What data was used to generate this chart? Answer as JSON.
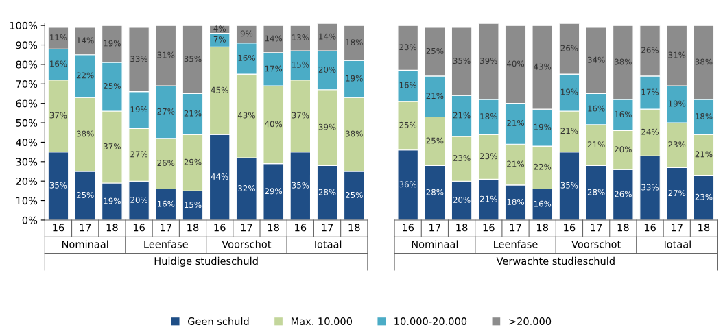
{
  "chart_data": {
    "type": "bar",
    "stacked": true,
    "categories": [
      "16",
      "17",
      "18",
      "16",
      "17",
      "18",
      "16",
      "17",
      "18",
      "16",
      "17",
      "18",
      null,
      "16",
      "17",
      "18",
      "16",
      "17",
      "18",
      "16",
      "17",
      "18",
      "16",
      "17",
      "18"
    ],
    "series": [
      {
        "name": "Geen schuld",
        "color": "#1f4e86",
        "values": [
          35,
          25,
          19,
          20,
          16,
          15,
          44,
          32,
          29,
          35,
          28,
          25,
          null,
          36,
          28,
          20,
          21,
          18,
          16,
          35,
          28,
          26,
          33,
          27,
          23
        ],
        "value_labels": [
          "35%",
          "25%",
          "19%",
          "20%",
          "16%",
          "15%",
          "44%",
          "32%",
          "29%",
          "35%",
          "28%",
          "25%",
          null,
          "36%",
          "28%",
          "20%",
          "21%",
          "18%",
          "16%",
          "35%",
          "28%",
          "26%",
          "33%",
          "27%",
          "23%"
        ]
      },
      {
        "name": "Max. 10.000",
        "color": "#c3d69b",
        "values": [
          37,
          38,
          37,
          27,
          26,
          29,
          45,
          43,
          40,
          37,
          39,
          38,
          null,
          25,
          25,
          23,
          23,
          21,
          22,
          21,
          21,
          20,
          24,
          23,
          21
        ],
        "value_labels": [
          "37%",
          "38%",
          "37%",
          "27%",
          "26%",
          "29%",
          "45%",
          "43%",
          "40%",
          "37%",
          "39%",
          "38%",
          null,
          "25%",
          "25%",
          "23%",
          "23%",
          "21%",
          "22%",
          "21%",
          "21%",
          "20%",
          "24%",
          "23%",
          "21%"
        ]
      },
      {
        "name": "10.000-20.000",
        "color": "#4bacc6",
        "values": [
          16,
          22,
          25,
          19,
          27,
          21,
          7,
          16,
          17,
          15,
          20,
          19,
          null,
          16,
          21,
          21,
          18,
          21,
          19,
          19,
          16,
          16,
          17,
          19,
          18
        ],
        "value_labels": [
          "16%",
          "22%",
          "25%",
          "19%",
          "27%",
          "21%",
          "7%",
          "16%",
          "17%",
          "15%",
          "20%",
          "19%",
          null,
          "16%",
          "21%",
          "21%",
          "18%",
          "21%",
          "19%",
          "19%",
          "16%",
          "16%",
          "17%",
          "19%",
          "18%"
        ]
      },
      {
        "name": ">20.000",
        "color": "#8c8c8c",
        "values": [
          11,
          14,
          19,
          33,
          31,
          35,
          4,
          9,
          14,
          13,
          14,
          18,
          null,
          23,
          25,
          35,
          39,
          40,
          43,
          26,
          34,
          38,
          26,
          31,
          38
        ],
        "value_labels": [
          "11%",
          "14%",
          "19%",
          "33%",
          "31%",
          "35%",
          "4%",
          "9%",
          "14%",
          "13%",
          "14%",
          "18%",
          null,
          "23%",
          "25%",
          "35%",
          "39%",
          "40%",
          "43%",
          "26%",
          "34%",
          "38%",
          "26%",
          "31%",
          "38%"
        ]
      }
    ],
    "ylim": [
      0,
      101
    ],
    "yticks": [
      {
        "value": 0,
        "label": "0%"
      },
      {
        "value": 10,
        "label": "10%"
      },
      {
        "value": 20,
        "label": "20%"
      },
      {
        "value": 30,
        "label": "30%"
      },
      {
        "value": 40,
        "label": "40%"
      },
      {
        "value": 50,
        "label": "50%"
      },
      {
        "value": 60,
        "label": "60%"
      },
      {
        "value": 70,
        "label": "70%"
      },
      {
        "value": 80,
        "label": "80%"
      },
      {
        "value": 90,
        "label": "90%"
      },
      {
        "value": 100,
        "label": "100%"
      }
    ],
    "annotations": [
      "Nominaal",
      "Leenfase",
      "Voorschot",
      "Totaal",
      "Nominaal",
      "Leenfase",
      "Voorschot",
      "Totaal",
      "Huidige studieschuld",
      "Verwachte studieschuld"
    ],
    "legend": "bottom"
  }
}
